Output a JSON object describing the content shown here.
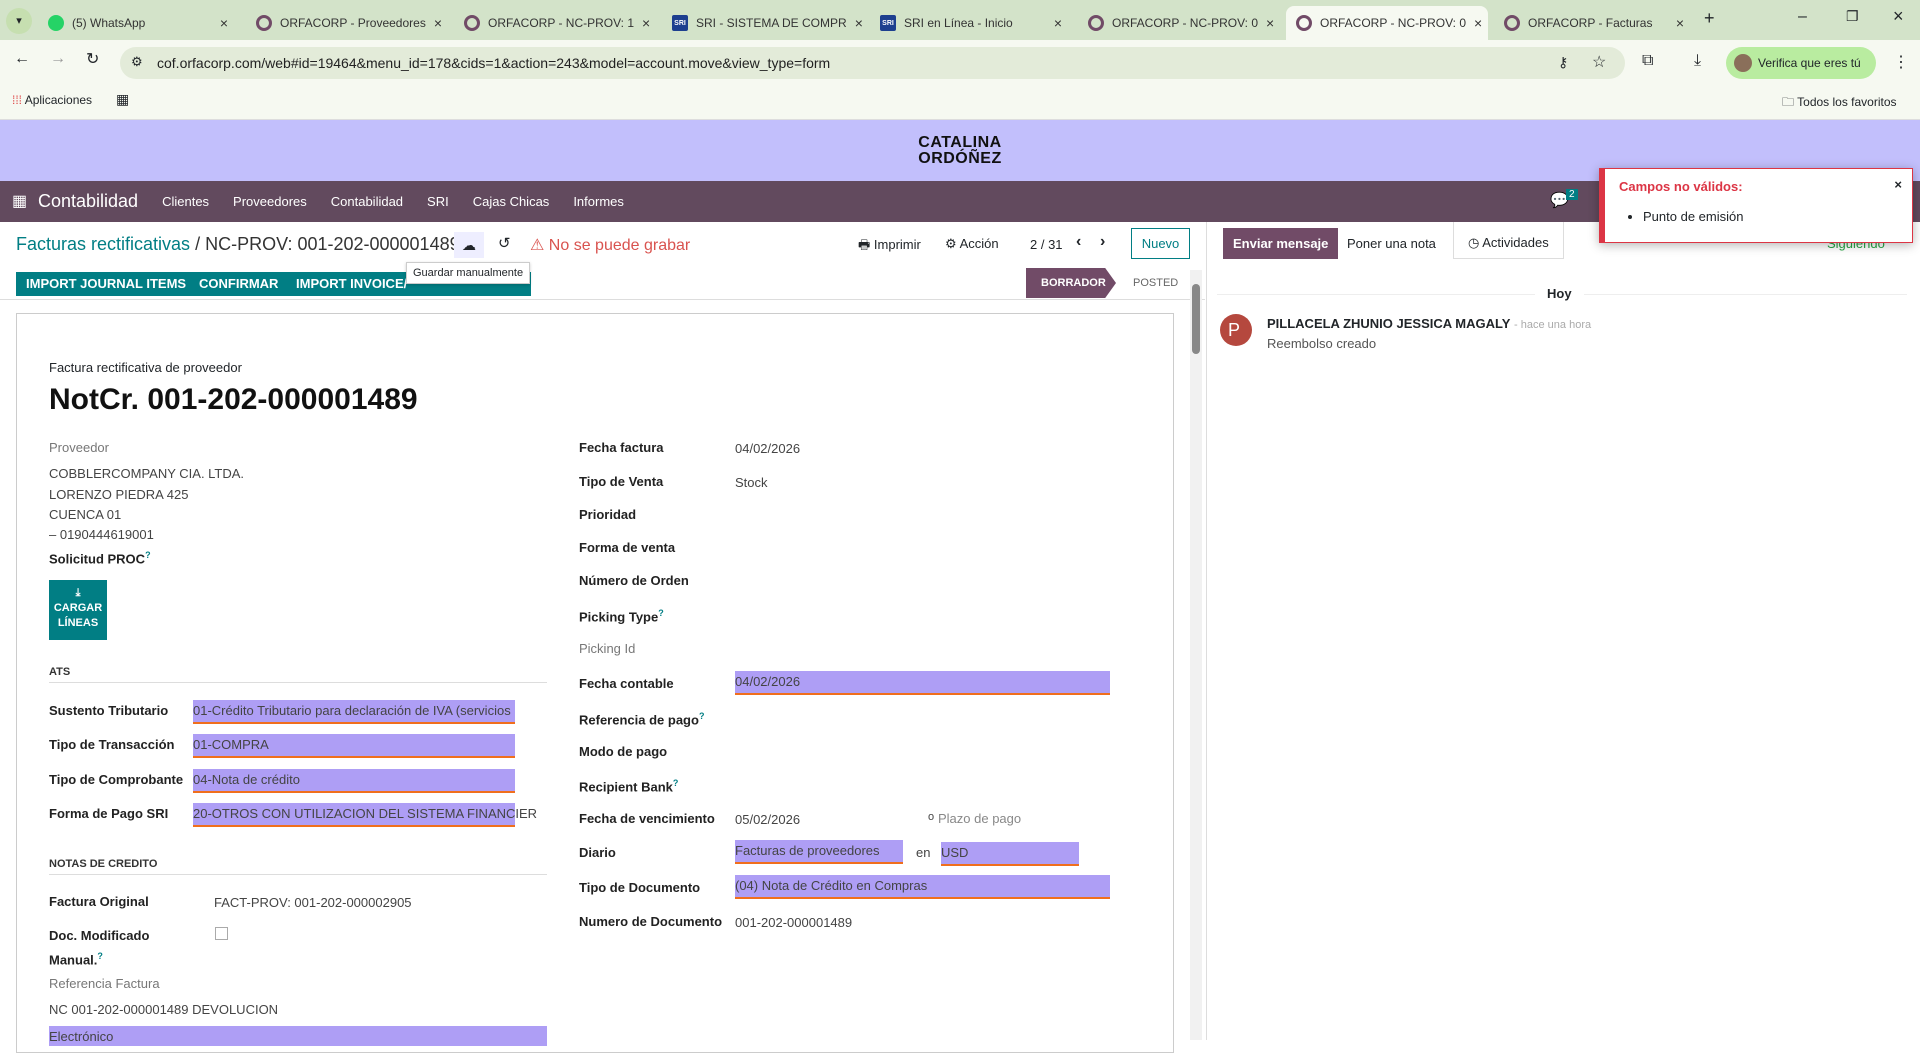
{
  "browser": {
    "tabs": [
      {
        "title": "(5) WhatsApp",
        "icon": "whatsapp-icon"
      },
      {
        "title": "ORFACORP - Proveedores",
        "icon": "odoo-icon"
      },
      {
        "title": "ORFACORP - NC-PROV: 1",
        "icon": "odoo-icon"
      },
      {
        "title": "SRI - SISTEMA DE COMPR",
        "icon": "sri-icon"
      },
      {
        "title": "SRI en Línea - Inicio",
        "icon": "sri-icon"
      },
      {
        "title": "ORFACORP - NC-PROV: 0",
        "icon": "odoo-icon"
      },
      {
        "title": "ORFACORP - NC-PROV: 0",
        "icon": "odoo-icon",
        "active": true
      },
      {
        "title": "ORFACORP - Facturas",
        "icon": "odoo-icon"
      }
    ],
    "url": "cof.orfacorp.com/web#id=19464&menu_id=178&cids=1&action=243&model=account.move&view_type=form",
    "verify_label": "Verifica que eres tú",
    "bookmarks": {
      "apps": "Aplicaciones",
      "all": "Todos los favoritos"
    }
  },
  "brand": {
    "line1": "CATALINA",
    "line2": "ORDÓÑEZ"
  },
  "nav": {
    "app": "Contabilidad",
    "menus": [
      "Clientes",
      "Proveedores",
      "Contabilidad",
      "SRI",
      "Cajas Chicas",
      "Informes"
    ],
    "messages_count": "2"
  },
  "control": {
    "breadcrumb_parent": "Facturas rectificativas",
    "breadcrumb_sep": "/",
    "breadcrumb_current": "NC-PROV: 001-202-000001489",
    "save_tooltip": "Guardar manualmente",
    "error": "No se puede grabar",
    "print": "Imprimir",
    "action": "Acción",
    "pager": "2 / 31",
    "new": "Nuevo",
    "buttons": [
      "IMPORT JOURNAL ITEMS",
      "CONFIRMAR",
      "IMPORT INVOICE/"
    ],
    "states": [
      "BORRADOR",
      "POSTED"
    ]
  },
  "form": {
    "subtitle": "Factura rectificativa de proveedor",
    "title": "NotCr. 001-202-000001489",
    "partner_label": "Proveedor",
    "partner_lines": [
      "COBBLERCOMPANY CIA. LTDA.",
      "LORENZO PIEDRA 425",
      "CUENCA 01",
      "– 0190444619001"
    ],
    "solicitud_label": "Solicitud PROC",
    "cargar_label": "CARGAR LÍNEAS",
    "ats_title": "ATS",
    "ats": [
      {
        "label": "Sustento Tributario",
        "value": "01-Crédito Tributario para declaración de IVA (servicios"
      },
      {
        "label": "Tipo de Transacción",
        "value": "01-COMPRA"
      },
      {
        "label": "Tipo de Comprobante",
        "value": "04-Nota de crédito"
      },
      {
        "label": "Forma de Pago SRI",
        "value": "20-OTROS CON UTILIZACION DEL SISTEMA FINANCIER"
      }
    ],
    "nc_title": "NOTAS DE CREDITO",
    "factura_original_label": "Factura Original",
    "factura_original": "FACT-PROV: 001-202-000002905",
    "doc_mod_label1": "Doc. Modificado",
    "doc_mod_label2": "Manual.",
    "doc_mod_checked": false,
    "ref_label": "Referencia Factura",
    "ref_value": "NC 001-202-000001489 DEVOLUCION",
    "electronico": "Electrónico",
    "right": [
      {
        "label": "Fecha factura",
        "value": "04/02/2026"
      },
      {
        "label": "Tipo de Venta",
        "value": "Stock"
      },
      {
        "label": "Prioridad",
        "value": ""
      },
      {
        "label": "Forma de venta",
        "value": ""
      },
      {
        "label": "Número de Orden",
        "value": ""
      },
      {
        "label": "Picking Type",
        "value": "",
        "help": true
      },
      {
        "label": "Picking Id",
        "value": "",
        "muted": true
      },
      {
        "label": "Fecha contable",
        "value": "04/02/2026",
        "invalid": true
      },
      {
        "label": "Referencia de pago",
        "value": "",
        "help": true
      },
      {
        "label": "Modo de pago",
        "value": ""
      },
      {
        "label": "Recipient Bank",
        "value": "",
        "help": true
      },
      {
        "label": "Fecha de vencimiento",
        "value": "05/02/2026"
      },
      {
        "label": "Diario",
        "value": "Facturas de proveedores"
      },
      {
        "label": "Tipo de Documento",
        "value": "(04) Nota de Crédito en Compras"
      },
      {
        "label": "Numero de Documento",
        "value": "001-202-000001489"
      }
    ],
    "or_label": "o",
    "payment_term_placeholder": "Plazo de pago",
    "in_label": "en",
    "currency": "USD"
  },
  "chatter": {
    "send": "Enviar mensaje",
    "note": "Poner una nota",
    "activities": "Actividades",
    "following": "Siguiendo",
    "day": "Hoy",
    "message": {
      "author": "PILLACELA ZHUNIO JESSICA MAGALY",
      "time": "- hace una hora",
      "body": "Reembolso creado",
      "initial": "P"
    }
  },
  "notification": {
    "title": "Campos no válidos:",
    "items": [
      "Punto de emisión"
    ],
    "close": "×"
  },
  "colors": {
    "brand_band": "#c2bffc",
    "navbar": "#624a5e",
    "primary": "#017e84",
    "invalid_field": "#ae9ef5",
    "invalid_border": "#f06f1d",
    "error": "#dc3545"
  }
}
